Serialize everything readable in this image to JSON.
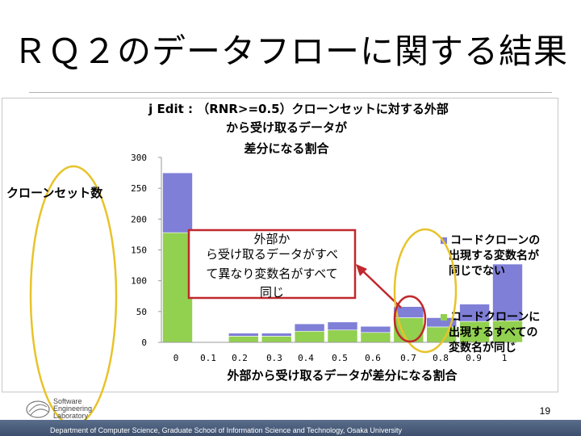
{
  "slide": {
    "title": "ＲＱ２のデータフローに関する結果",
    "page_number": "19",
    "footer": "Department of Computer Science, Graduate School of Information Science and Technology, Osaka University",
    "logo_lines": [
      "Software",
      "Engineering",
      "Laboratory"
    ]
  },
  "colors": {
    "purple": "#7f7fd8",
    "green": "#92d050",
    "highlight_ellipse": "#e8c32a",
    "callout_red": "#c0282c",
    "footer_bar": "#4a5c7a"
  },
  "chart_data": {
    "type": "bar",
    "stacked": true,
    "title": "j Edit : （RNR>=0.5）クローンセットに対する外部から受け取るデータが差分になる割合",
    "title_lines": [
      "j Edit : （RNR>=0.5）クローンセットに対する外部",
      "から受け取るデータが",
      "差分になる割合"
    ],
    "xlabel": "外部から受け取るデータが差分になる割合",
    "ylabel": "クローンセット数",
    "ylim": [
      0,
      300
    ],
    "yticks": [
      "0",
      "50",
      "100",
      "150",
      "200",
      "250",
      "300"
    ],
    "xticks": [
      "0",
      "0.1",
      "0.2",
      "0.3",
      "0.4",
      "0.5",
      "0.6",
      "0.7",
      "0.8",
      "0.9",
      "1"
    ],
    "categories": [
      "0",
      "0.1",
      "0.2",
      "0.3",
      "0.4",
      "0.5",
      "0.6",
      "0.7",
      "0.8",
      "0.9",
      "1"
    ],
    "series": [
      {
        "name": "コードクローンに出現するすべての変数名が同じ",
        "color": "#92d050",
        "values": [
          178,
          0,
          10,
          10,
          18,
          20,
          16,
          40,
          25,
          34,
          35
        ]
      },
      {
        "name": "コードクローンの出現する変数名が同じでない",
        "color": "#7f7fd8",
        "values": [
          97,
          0,
          5,
          5,
          12,
          13,
          10,
          18,
          15,
          28,
          92
        ]
      }
    ],
    "legend_labels": [
      [
        "コードクローンの",
        "出現する変数名が",
        "同じでない"
      ],
      [
        "コードクローンに",
        "出現するすべての",
        "変数名が同じ"
      ]
    ],
    "annotation": {
      "text_lines": [
        "外部か",
        "ら受け取るデータがすべ",
        "て異なり変数名がすべて",
        "同じ"
      ]
    }
  }
}
